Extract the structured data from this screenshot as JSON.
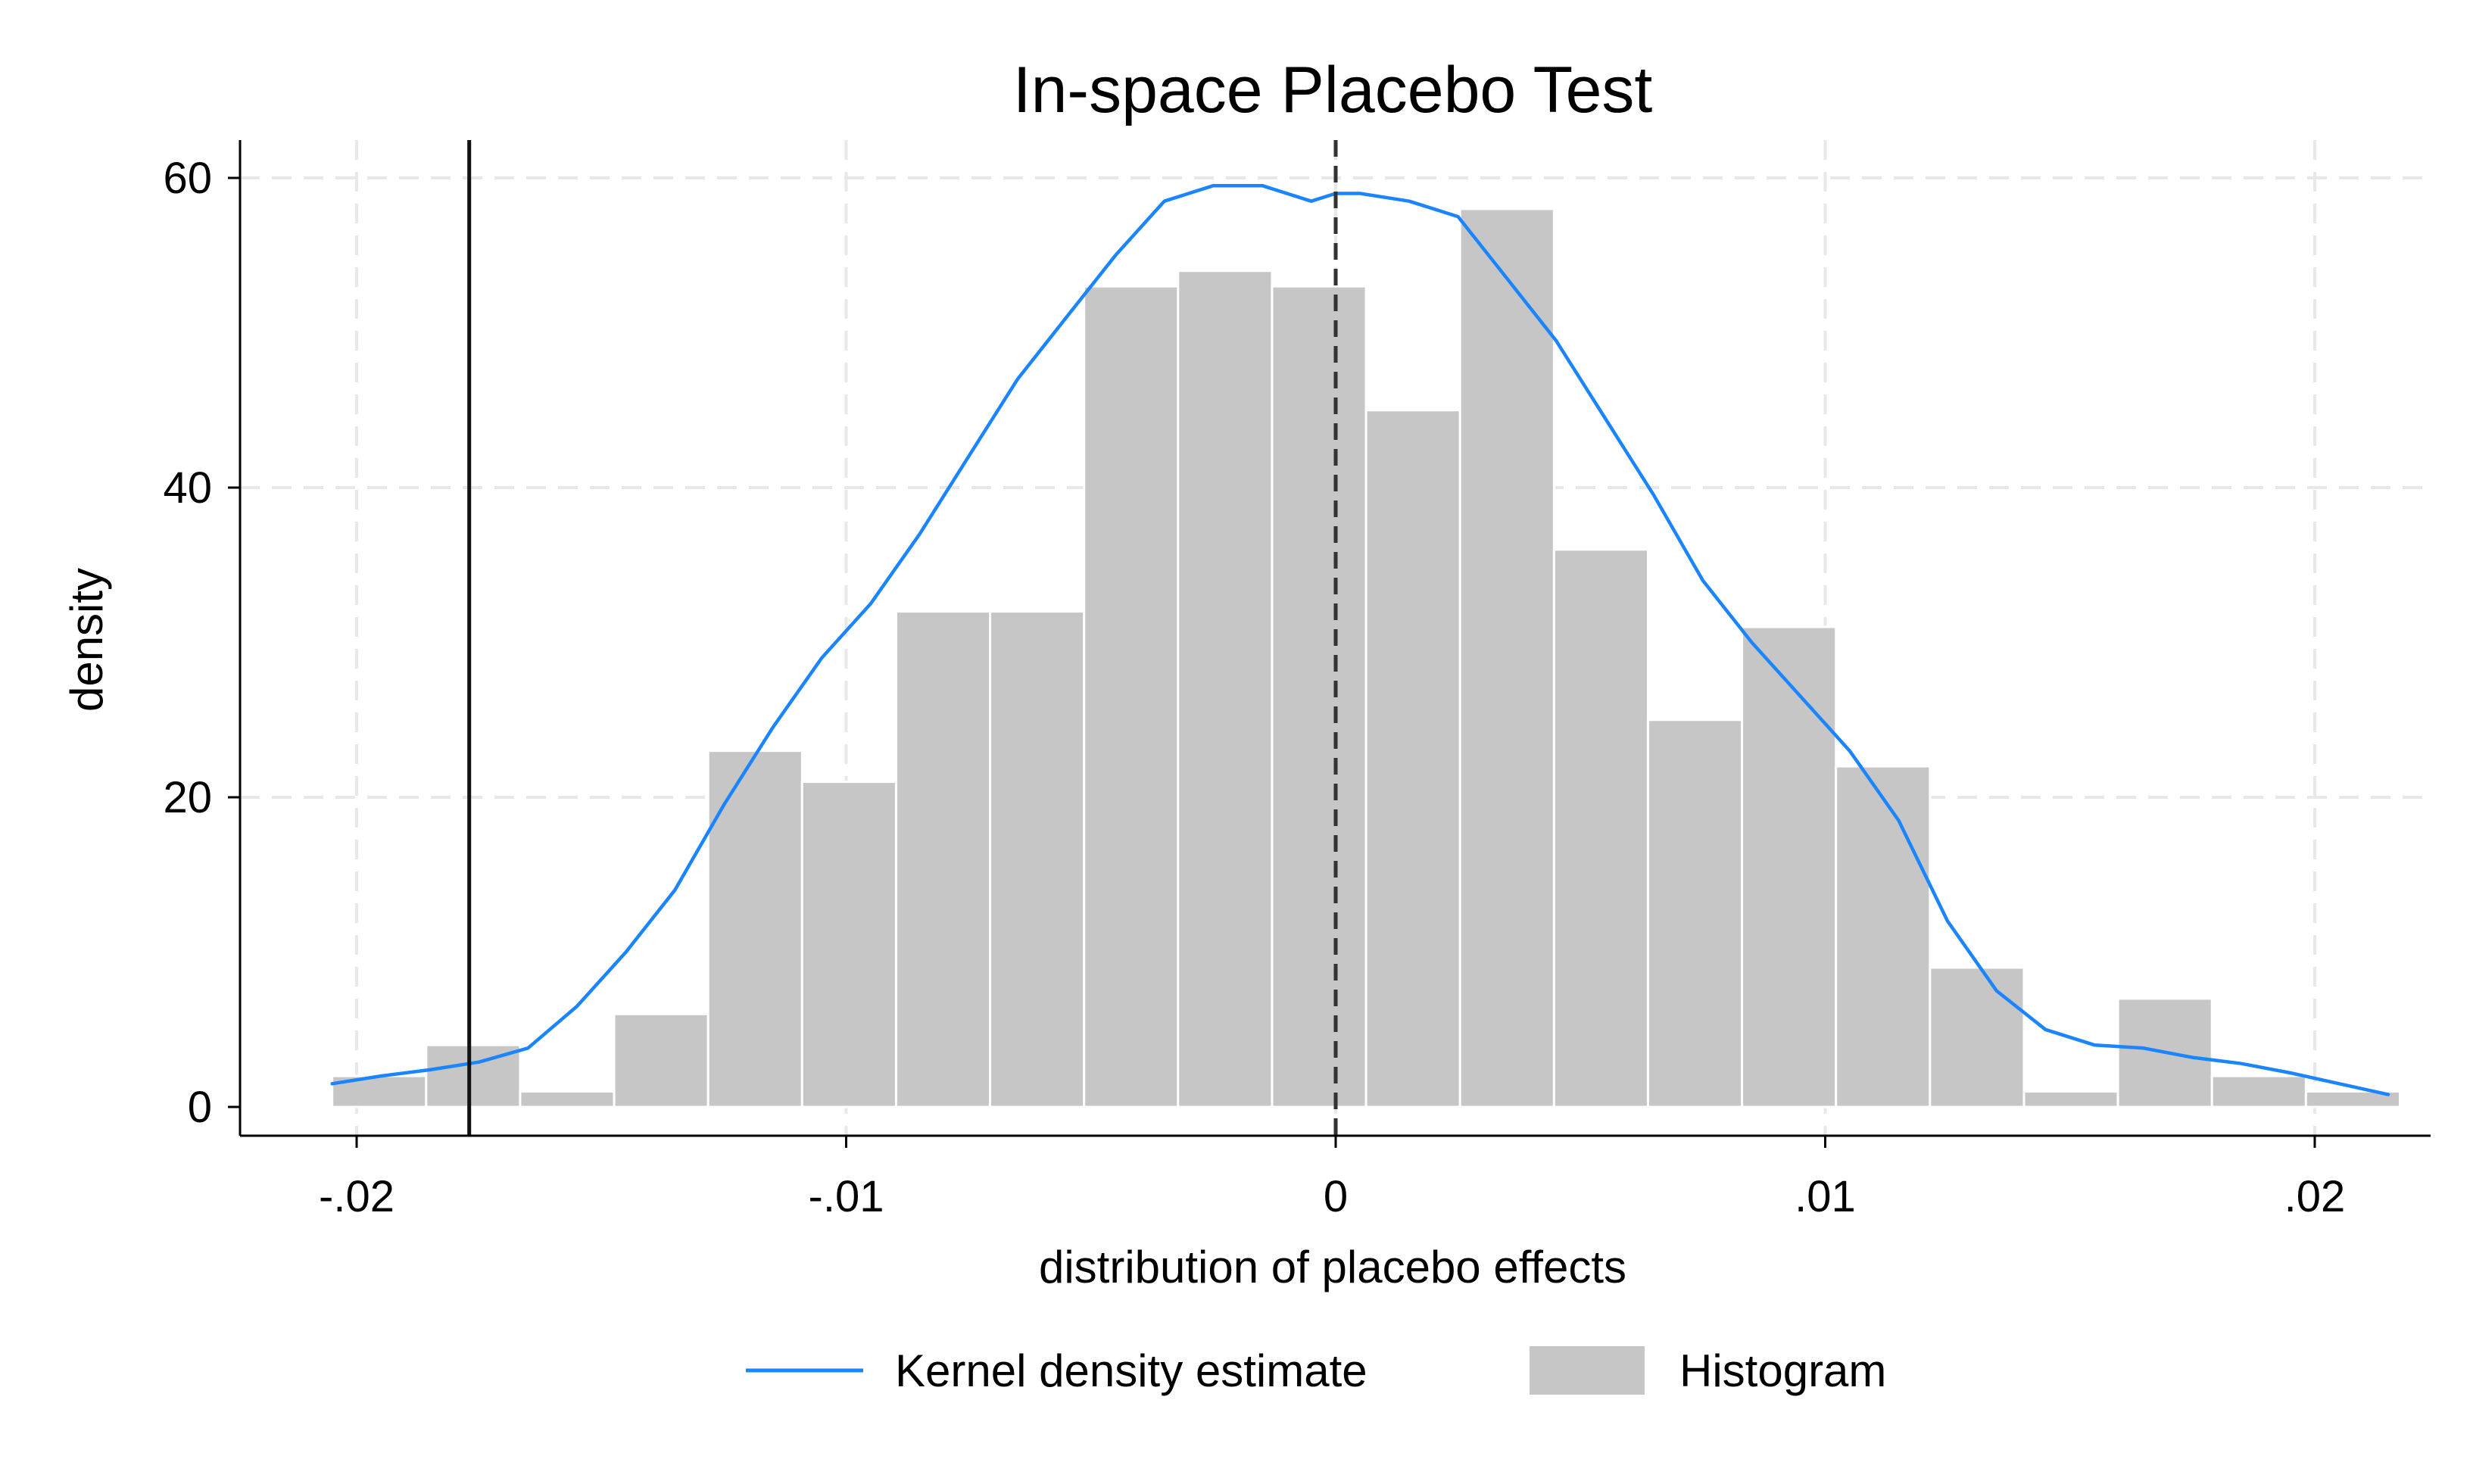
{
  "chart_data": {
    "type": "bar",
    "title": "In-space Placebo Test",
    "xlabel": "distribution of placebo effects",
    "ylabel": "density",
    "xlim": [
      -0.0225,
      0.0225
    ],
    "ylim": [
      -2,
      62
    ],
    "x_ticks": [
      -0.02,
      -0.01,
      0,
      0.01,
      0.02
    ],
    "x_tick_labels": [
      "-.02",
      "-.01",
      "0",
      ".01",
      ".02"
    ],
    "y_ticks": [
      0,
      20,
      40,
      60
    ],
    "y_tick_labels": [
      "0",
      "20",
      "40",
      "60"
    ],
    "grid": true,
    "legend_position": "bottom",
    "series": [
      {
        "name": "Histogram",
        "type": "histogram",
        "color": "#c6c6c6",
        "bin_start": -0.0205,
        "bin_width": 0.00192,
        "values": [
          2,
          4,
          1,
          6,
          23,
          21,
          32,
          32,
          53,
          54,
          53,
          45,
          58,
          36,
          25,
          31,
          22,
          9,
          1,
          7,
          2,
          1
        ]
      },
      {
        "name": "Kernel density estimate",
        "type": "line",
        "color": "#1a85ff",
        "x": [
          -0.0205,
          -0.0195,
          -0.0185,
          -0.0175,
          -0.0165,
          -0.0155,
          -0.0145,
          -0.0135,
          -0.0125,
          -0.0115,
          -0.0105,
          -0.0095,
          -0.0085,
          -0.0075,
          -0.0065,
          -0.0055,
          -0.0045,
          -0.0035,
          -0.0025,
          -0.0015,
          -0.0005,
          0,
          0.0005,
          0.0015,
          0.0025,
          0.0035,
          0.0045,
          0.0055,
          0.0065,
          0.0075,
          0.0085,
          0.0095,
          0.0105,
          0.0115,
          0.0125,
          0.0135,
          0.0145,
          0.0155,
          0.0165,
          0.0175,
          0.0185,
          0.0195,
          0.0205,
          0.0215
        ],
        "y": [
          1.5,
          2.0,
          2.4,
          2.9,
          3.8,
          6.5,
          10,
          14,
          19.5,
          24.5,
          29,
          32.5,
          37,
          42,
          47,
          51,
          55,
          58.5,
          59.5,
          59.5,
          58.5,
          59,
          59,
          58.5,
          57.5,
          53.5,
          49.5,
          44.5,
          39.5,
          34,
          30,
          26.5,
          23,
          18.5,
          12,
          7.5,
          5,
          4,
          3.8,
          3.2,
          2.8,
          2.2,
          1.5,
          0.8
        ]
      }
    ],
    "reference_lines": [
      {
        "x": -0.0177,
        "style": "solid"
      },
      {
        "x": 0,
        "style": "dashed"
      }
    ]
  }
}
